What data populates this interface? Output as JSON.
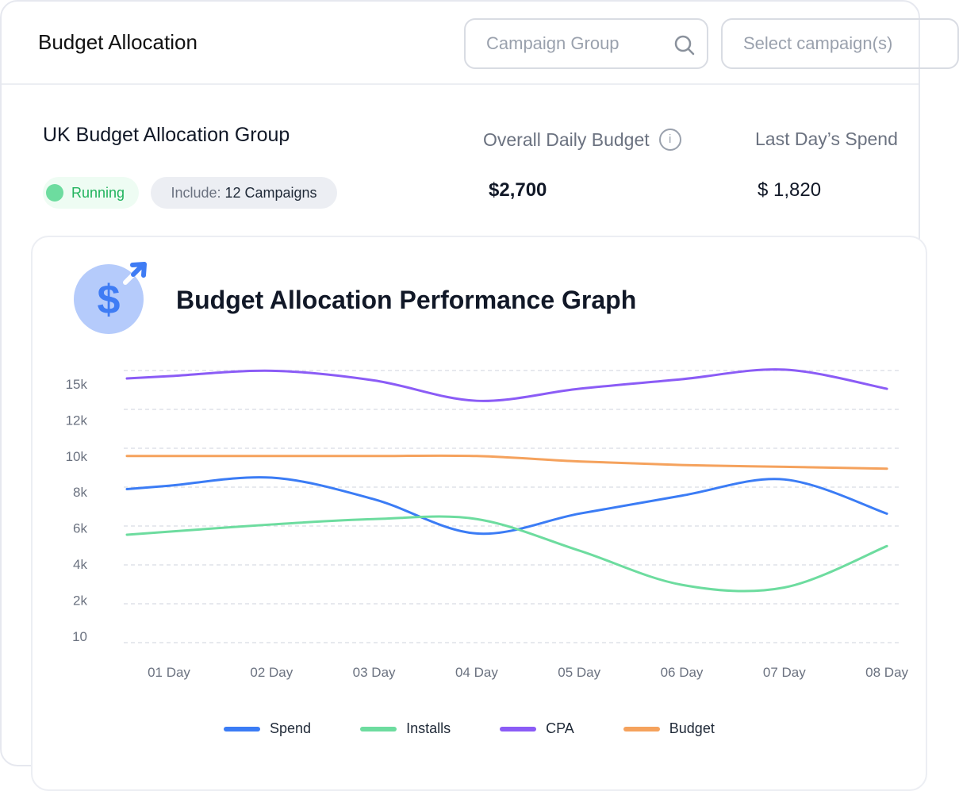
{
  "header": {
    "title": "Budget Allocation",
    "search_placeholder": "Campaign Group",
    "select_placeholder": "Select campaign(s)"
  },
  "group": {
    "name": "UK Budget Allocation Group",
    "status": "Running",
    "include_label": "Include:",
    "include_value": "12 Campaigns"
  },
  "stats": [
    {
      "label": "Overall Daily Budget",
      "value": "$2,700"
    },
    {
      "label": "Last Day’s Spend",
      "value": "$ 1,820"
    }
  ],
  "chart_card": {
    "title": "Budget Allocation Performance Graph",
    "icon": "dollar-growth-icon"
  },
  "chart_data": {
    "type": "line",
    "title": "Budget Allocation Performance Graph",
    "categories": [
      "01 Day",
      "02 Day",
      "03 Day",
      "04 Day",
      "05 Day",
      "06 Day",
      "07  Day",
      "08 Day"
    ],
    "y_ticks": [
      "15k",
      "12k",
      "10k",
      "8k",
      "6k",
      "4k",
      "2k",
      "10"
    ],
    "y_tick_values": [
      15000,
      12000,
      10000,
      8000,
      6000,
      4000,
      2000,
      10
    ],
    "grid": true,
    "legend": "bottom",
    "series": [
      {
        "name": "Spend",
        "color": "#3b7cf5",
        "values": [
          8350,
          8800,
          7600,
          5700,
          6800,
          7800,
          8700,
          6800
        ]
      },
      {
        "name": "Installs",
        "color": "#6ddc9f",
        "values": [
          5800,
          6200,
          6500,
          6500,
          4750,
          2850,
          2700,
          5000
        ]
      },
      {
        "name": "CPA",
        "color": "#8b5cf6",
        "values": [
          15650,
          16100,
          15300,
          13600,
          14600,
          15400,
          16200,
          14600
        ]
      },
      {
        "name": "Budget",
        "color": "#f5a25d",
        "values": [
          10000,
          10000,
          10000,
          10000,
          9700,
          9500,
          9400,
          9300
        ]
      }
    ]
  }
}
